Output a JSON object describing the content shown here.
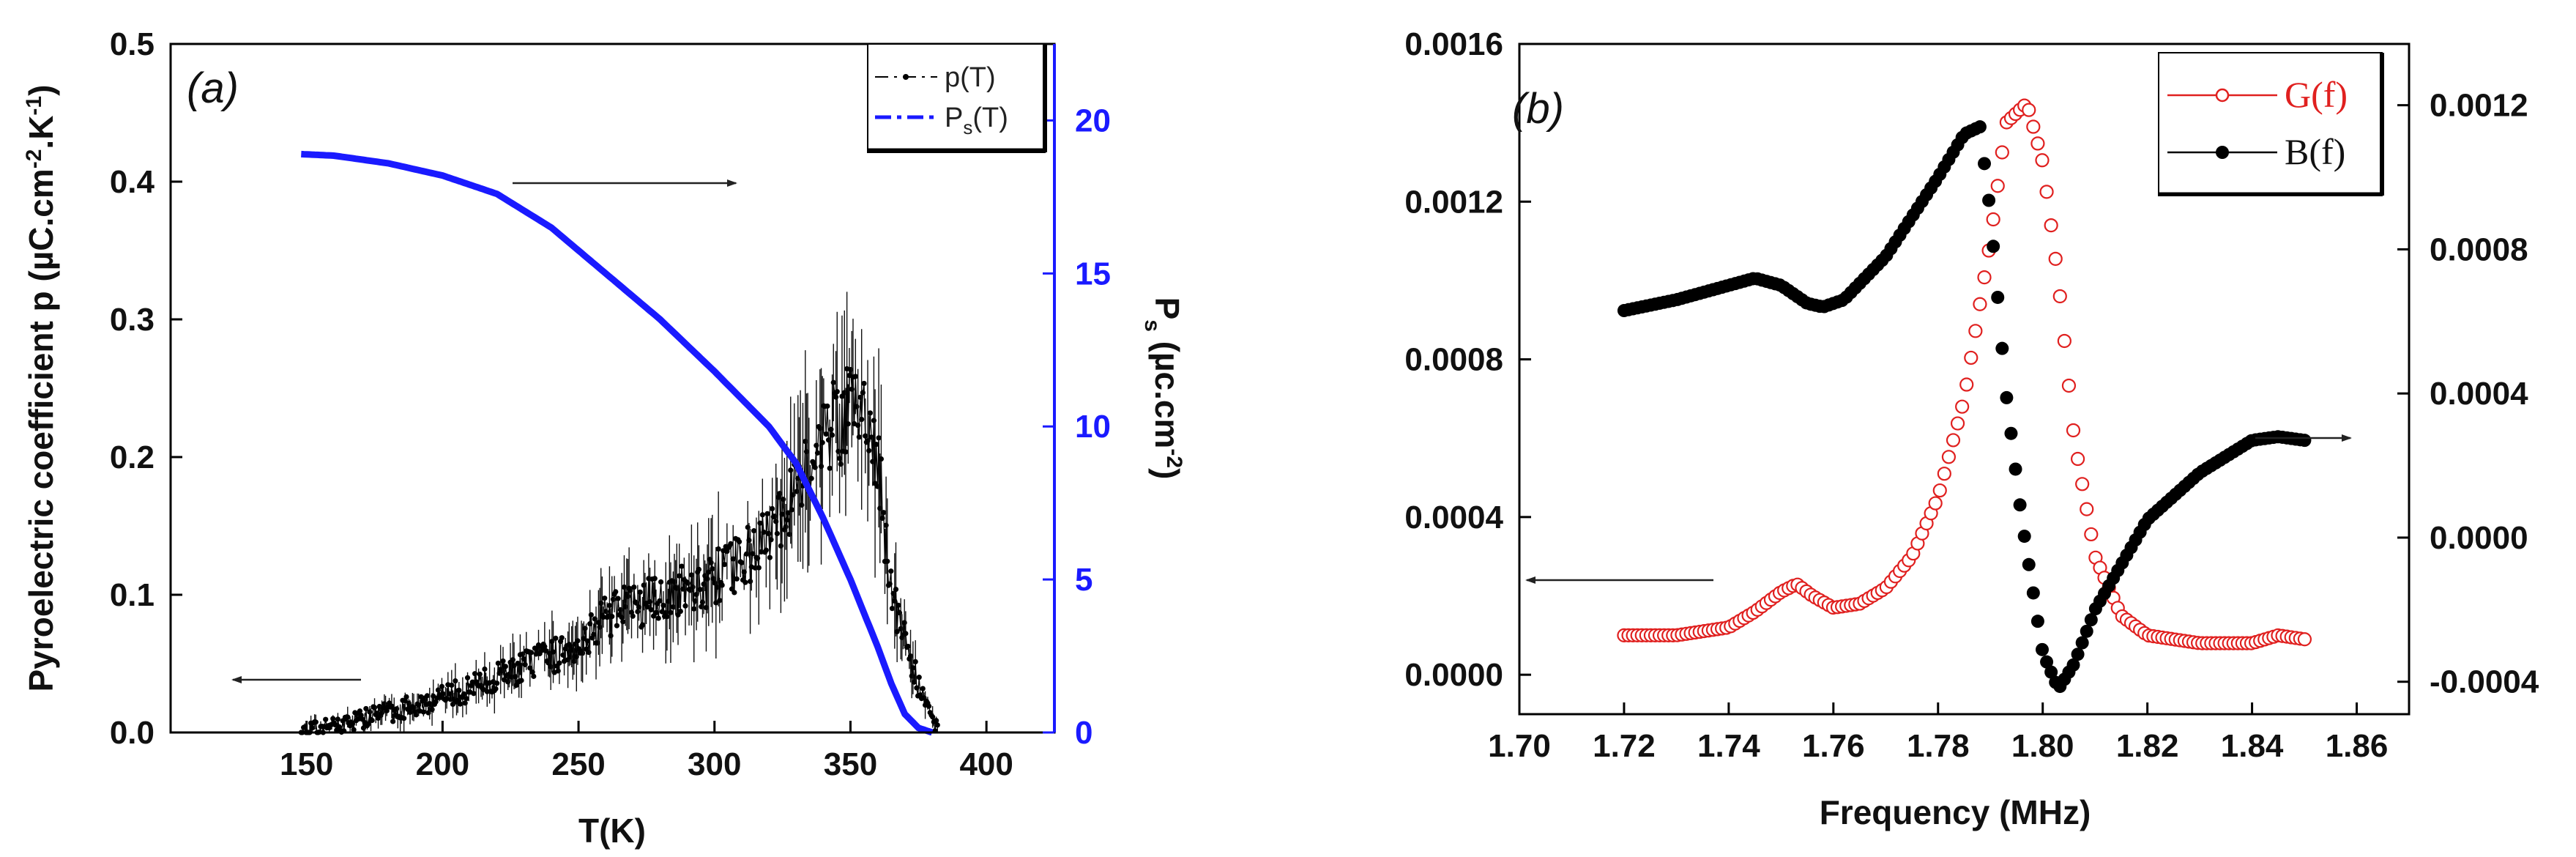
{
  "chart_data": [
    {
      "type": "scatter",
      "panel_label": "(a)",
      "xlabel": "T(K)",
      "ylabel": "Pyroelectric coefficient p (µC.cm^-2.K^-1)",
      "ylabel_text": {
        "pre": "Pyroelectric coefficient p (µC.cm",
        "sup1": "-2",
        "mid": ".K",
        "sup2": "-1",
        "post": ")"
      },
      "y2label_text": {
        "pre": "P",
        "sub": "s",
        "mid": " (µc.cm",
        "sup": "-2",
        "post": ")"
      },
      "xlim": [
        100,
        425
      ],
      "ylim": [
        0,
        0.5
      ],
      "y2lim": [
        0,
        22.5
      ],
      "xticks": [
        "150",
        "200",
        "250",
        "300",
        "350",
        "400"
      ],
      "yticks": [
        "0.0",
        "0.1",
        "0.2",
        "0.3",
        "0.4",
        "0.5"
      ],
      "y2ticks": [
        "0",
        "5",
        "10",
        "15",
        "20"
      ],
      "legend": [
        {
          "name": "p(T)",
          "color": "#000000"
        },
        {
          "name": "Ps(T)",
          "label_main": "P",
          "label_sub": "s",
          "label_post": "(T)",
          "color": "#1a1aff"
        }
      ],
      "series": [
        {
          "name": "p(T)",
          "axis": "left",
          "color": "#000000",
          "style": "dots-with-errorbars",
          "x": [
            148,
            160,
            170,
            180,
            190,
            200,
            210,
            220,
            230,
            240,
            250,
            255,
            260,
            270,
            280,
            290,
            300,
            310,
            320,
            330,
            335,
            340,
            345,
            350,
            355,
            360,
            363,
            366,
            370,
            375,
            380,
            382
          ],
          "y": [
            0.0,
            0.005,
            0.01,
            0.015,
            0.02,
            0.025,
            0.032,
            0.04,
            0.048,
            0.055,
            0.065,
            0.075,
            0.085,
            0.092,
            0.097,
            0.105,
            0.112,
            0.125,
            0.142,
            0.175,
            0.2,
            0.215,
            0.225,
            0.235,
            0.23,
            0.2,
            0.14,
            0.1,
            0.065,
            0.035,
            0.012,
            0.0
          ]
        },
        {
          "name": "Ps(T)",
          "axis": "right",
          "color": "#1a1aff",
          "style": "line",
          "x": [
            148,
            160,
            180,
            200,
            220,
            240,
            260,
            280,
            300,
            310,
            320,
            330,
            340,
            350,
            360,
            365,
            370,
            375,
            380
          ],
          "y": [
            18.9,
            18.85,
            18.6,
            18.2,
            17.6,
            16.5,
            15.0,
            13.5,
            11.8,
            10.9,
            10.0,
            8.8,
            7.0,
            5.0,
            2.8,
            1.6,
            0.6,
            0.15,
            0.0
          ]
        }
      ]
    },
    {
      "type": "scatter",
      "panel_label": "(b)",
      "xlabel": "Frequency (MHz)",
      "ylabel": "",
      "xlim": [
        1.7,
        1.87
      ],
      "ylim": [
        -0.0001,
        0.0016
      ],
      "y2lim": [
        -0.00049,
        0.00137
      ],
      "xticks": [
        "1.70",
        "1.72",
        "1.74",
        "1.76",
        "1.78",
        "1.80",
        "1.82",
        "1.84",
        "1.86"
      ],
      "yticks": [
        "0.0000",
        "0.0004",
        "0.0008",
        "0.0012",
        "0.0016"
      ],
      "y2ticks": [
        "-0.0004",
        "0.0000",
        "0.0004",
        "0.0008",
        "0.0012"
      ],
      "legend": [
        {
          "name": "G(f)",
          "color": "#e0201f"
        },
        {
          "name": "B(f)",
          "color": "#000000"
        }
      ],
      "series": [
        {
          "name": "G(f)",
          "axis": "left",
          "color": "#e0201f",
          "style": "open-circles",
          "x": [
            1.72,
            1.73,
            1.74,
            1.745,
            1.75,
            1.753,
            1.756,
            1.76,
            1.765,
            1.77,
            1.775,
            1.78,
            1.785,
            1.79,
            1.793,
            1.797,
            1.8,
            1.803,
            1.806,
            1.81,
            1.815,
            1.82,
            1.83,
            1.84,
            1.845,
            1.85
          ],
          "y": [
            0.0001,
            0.0001,
            0.00012,
            0.00016,
            0.00021,
            0.00023,
            0.0002,
            0.00017,
            0.00018,
            0.00022,
            0.0003,
            0.00045,
            0.0007,
            0.0011,
            0.0014,
            0.00145,
            0.0013,
            0.001,
            0.0006,
            0.0003,
            0.00015,
            0.0001,
            8e-05,
            8e-05,
            0.0001,
            9e-05
          ]
        },
        {
          "name": "B(f)",
          "axis": "right",
          "color": "#000000",
          "style": "filled-dots",
          "x": [
            1.72,
            1.73,
            1.74,
            1.745,
            1.75,
            1.755,
            1.758,
            1.762,
            1.77,
            1.78,
            1.785,
            1.788,
            1.79,
            1.793,
            1.796,
            1.8,
            1.803,
            1.806,
            1.81,
            1.82,
            1.83,
            1.84,
            1.845,
            1.85
          ],
          "y": [
            0.00063,
            0.00066,
            0.0007,
            0.00072,
            0.0007,
            0.00065,
            0.00064,
            0.00066,
            0.00078,
            0.001,
            0.00112,
            0.00114,
            0.0009,
            0.0004,
            5e-05,
            -0.00032,
            -0.00042,
            -0.00035,
            -0.0002,
            5e-05,
            0.00018,
            0.00027,
            0.00028,
            0.00027
          ]
        }
      ]
    }
  ]
}
